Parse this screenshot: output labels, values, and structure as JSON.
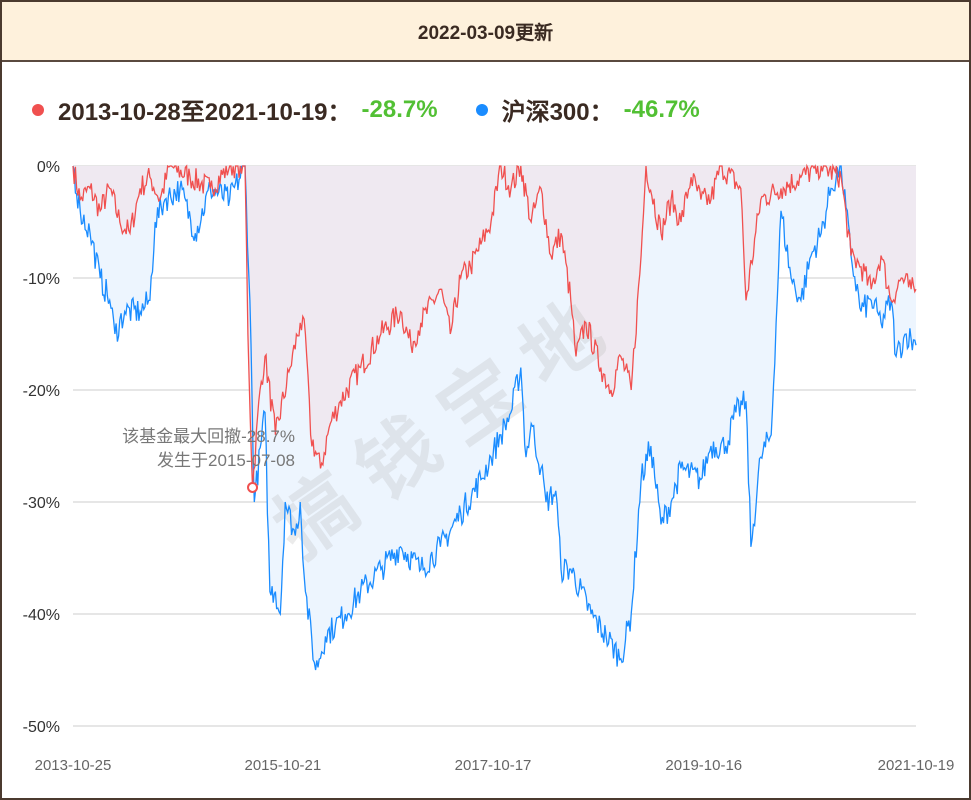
{
  "header": {
    "title": "2022-03-09更新"
  },
  "legend": [
    {
      "label": "2013-10-28至2021-10-19：",
      "value": "-28.7%",
      "color": "#f0504f"
    },
    {
      "label": "沪深300：",
      "value": "-46.7%",
      "color": "#1a8cff"
    }
  ],
  "watermark": "搞钱宝地",
  "chart_data": {
    "type": "area",
    "title": "",
    "xlabel": "",
    "ylabel": "",
    "ylim": [
      -50,
      0
    ],
    "xlim": [
      "2013-10-25",
      "2021-10-19"
    ],
    "y_ticks": [
      "0%",
      "-10%",
      "-20%",
      "-30%",
      "-40%",
      "-50%"
    ],
    "y_tick_values": [
      0,
      -10,
      -20,
      -30,
      -40,
      -50
    ],
    "x_ticks": [
      "2013-10-25",
      "2015-10-21",
      "2017-10-17",
      "2019-10-16",
      "2021-10-19"
    ],
    "grid": "horizontal",
    "legend_position": "top-left",
    "annotation": {
      "line1": "该基金最大回撤-28.7%",
      "line2": "发生于2015-07-08",
      "date": "2015-07-08",
      "value": -28.7
    },
    "fill_colors": {
      "fund": "#efe6ee",
      "index": "#edf5fe"
    },
    "series": [
      {
        "name": "2013-10-28至2021-10-19",
        "color": "#f0504f",
        "points": [
          [
            "2013-10-25",
            0
          ],
          [
            "2013-11-19",
            -3
          ],
          [
            "2013-12-23",
            -2
          ],
          [
            "2014-01-27",
            -4
          ],
          [
            "2014-03-01",
            -2
          ],
          [
            "2014-04-05",
            -5
          ],
          [
            "2014-05-10",
            -6
          ],
          [
            "2014-06-14",
            -2
          ],
          [
            "2014-07-18",
            -1
          ],
          [
            "2014-08-22",
            -3
          ],
          [
            "2014-09-26",
            0
          ],
          [
            "2014-12-04",
            -1
          ],
          [
            "2015-02-12",
            -2
          ],
          [
            "2015-04-20",
            0
          ],
          [
            "2015-06-12",
            0
          ],
          [
            "2015-06-22",
            -15
          ],
          [
            "2015-07-08",
            -28.7
          ],
          [
            "2015-08-03",
            -20
          ],
          [
            "2015-08-20",
            -17
          ],
          [
            "2015-09-25",
            -24
          ],
          [
            "2015-11-15",
            -18
          ],
          [
            "2015-12-20",
            -14
          ],
          [
            "2016-01-07",
            -15
          ],
          [
            "2016-01-25",
            -24
          ],
          [
            "2016-02-28",
            -27
          ],
          [
            "2016-04-02",
            -23
          ],
          [
            "2016-05-07",
            -21
          ],
          [
            "2016-07-16",
            -18
          ],
          [
            "2016-09-24",
            -15
          ],
          [
            "2016-12-01",
            -13
          ],
          [
            "2017-01-06",
            -16
          ],
          [
            "2017-02-09",
            -14
          ],
          [
            "2017-04-18",
            -11
          ],
          [
            "2017-05-22",
            -15
          ],
          [
            "2017-06-27",
            -10
          ],
          [
            "2017-07-31",
            -9
          ],
          [
            "2017-09-05",
            -7
          ],
          [
            "2017-10-10",
            -5
          ],
          [
            "2017-11-13",
            0
          ],
          [
            "2017-12-18",
            -2
          ],
          [
            "2018-01-21",
            0
          ],
          [
            "2018-02-26",
            -5
          ],
          [
            "2018-04-01",
            -2
          ],
          [
            "2018-05-05",
            -8
          ],
          [
            "2018-06-09",
            -6
          ],
          [
            "2018-07-13",
            -12
          ],
          [
            "2018-07-31",
            -17
          ],
          [
            "2018-09-03",
            -14
          ],
          [
            "2018-10-25",
            -18
          ],
          [
            "2018-11-29",
            -20
          ],
          [
            "2019-01-02",
            -17
          ],
          [
            "2019-02-07",
            -20
          ],
          [
            "2019-03-13",
            -8
          ],
          [
            "2019-03-30",
            0
          ],
          [
            "2019-05-21",
            -6
          ],
          [
            "2019-06-25",
            -3
          ],
          [
            "2019-07-29",
            -5
          ],
          [
            "2019-09-02",
            -1
          ],
          [
            "2019-10-06",
            -3
          ],
          [
            "2019-11-10",
            -3
          ],
          [
            "2019-12-14",
            0
          ],
          [
            "2020-02-21",
            -2
          ],
          [
            "2020-03-10",
            -12
          ],
          [
            "2020-04-30",
            -3
          ],
          [
            "2020-07-09",
            -2
          ],
          [
            "2020-09-16",
            -1
          ],
          [
            "2020-11-25",
            0
          ],
          [
            "2021-02-02",
            -1
          ],
          [
            "2021-03-08",
            -8
          ],
          [
            "2021-04-12",
            -9
          ],
          [
            "2021-05-17",
            -11
          ],
          [
            "2021-06-20",
            -8
          ],
          [
            "2021-07-25",
            -12
          ],
          [
            "2021-08-29",
            -10
          ],
          [
            "2021-10-02",
            -11
          ],
          [
            "2021-10-19",
            -11
          ]
        ]
      },
      {
        "name": "沪深300",
        "color": "#1a8cff",
        "points": [
          [
            "2013-10-25",
            0
          ],
          [
            "2013-11-19",
            -4
          ],
          [
            "2013-12-23",
            -6
          ],
          [
            "2014-01-27",
            -10
          ],
          [
            "2014-03-01",
            -12
          ],
          [
            "2014-03-19",
            -15
          ],
          [
            "2014-04-22",
            -13
          ],
          [
            "2014-06-14",
            -13
          ],
          [
            "2014-07-18",
            -12
          ],
          [
            "2014-08-05",
            -5
          ],
          [
            "2014-09-08",
            -3
          ],
          [
            "2014-10-30",
            -2
          ],
          [
            "2014-12-22",
            -6
          ],
          [
            "2015-02-12",
            -2
          ],
          [
            "2015-04-20",
            -3
          ],
          [
            "2015-06-12",
            0
          ],
          [
            "2015-06-29",
            -12
          ],
          [
            "2015-07-14",
            -30
          ],
          [
            "2015-08-20",
            -22
          ],
          [
            "2015-09-06",
            -38
          ],
          [
            "2015-09-25",
            -38
          ],
          [
            "2015-10-12",
            -40
          ],
          [
            "2015-10-29",
            -30
          ],
          [
            "2015-12-03",
            -33
          ],
          [
            "2015-12-20",
            -30
          ],
          [
            "2016-01-07",
            -38
          ],
          [
            "2016-02-11",
            -45
          ],
          [
            "2016-03-16",
            -42
          ],
          [
            "2016-04-20",
            -41
          ],
          [
            "2016-05-24",
            -40
          ],
          [
            "2016-07-16",
            -38
          ],
          [
            "2016-09-24",
            -36
          ],
          [
            "2016-12-01",
            -34
          ],
          [
            "2017-02-09",
            -36
          ],
          [
            "2017-04-18",
            -34
          ],
          [
            "2017-06-27",
            -31
          ],
          [
            "2017-09-05",
            -28
          ],
          [
            "2017-10-10",
            -26
          ],
          [
            "2017-11-13",
            -24
          ],
          [
            "2017-12-18",
            -22
          ],
          [
            "2018-01-21",
            -18
          ],
          [
            "2018-02-08",
            -26
          ],
          [
            "2018-02-26",
            -23
          ],
          [
            "2018-04-01",
            -27
          ],
          [
            "2018-04-18",
            -30
          ],
          [
            "2018-05-22",
            -29
          ],
          [
            "2018-06-09",
            -36
          ],
          [
            "2018-07-13",
            -36
          ],
          [
            "2018-09-21",
            -40
          ],
          [
            "2018-11-12",
            -42
          ],
          [
            "2019-01-02",
            -44
          ],
          [
            "2019-02-07",
            -40
          ],
          [
            "2019-03-13",
            -28
          ],
          [
            "2019-04-16",
            -25
          ],
          [
            "2019-05-21",
            -32
          ],
          [
            "2019-06-25",
            -30
          ],
          [
            "2019-07-29",
            -27
          ],
          [
            "2019-10-06",
            -28
          ],
          [
            "2019-11-10",
            -25
          ],
          [
            "2019-12-31",
            -25
          ],
          [
            "2020-02-04",
            -22
          ],
          [
            "2020-03-10",
            -21
          ],
          [
            "2020-03-27",
            -34
          ],
          [
            "2020-04-30",
            -26
          ],
          [
            "2020-06-05",
            -24
          ],
          [
            "2020-07-09",
            -4
          ],
          [
            "2020-08-13",
            -10
          ],
          [
            "2020-09-16",
            -12
          ],
          [
            "2020-10-21",
            -8
          ],
          [
            "2020-11-25",
            -6
          ],
          [
            "2020-12-29",
            -2
          ],
          [
            "2021-02-02",
            0
          ],
          [
            "2021-03-08",
            -8
          ],
          [
            "2021-04-12",
            -13
          ],
          [
            "2021-05-17",
            -12
          ],
          [
            "2021-06-20",
            -14
          ],
          [
            "2021-07-25",
            -12
          ],
          [
            "2021-08-11",
            -17
          ],
          [
            "2021-09-15",
            -15
          ],
          [
            "2021-10-19",
            -16
          ]
        ]
      }
    ]
  }
}
